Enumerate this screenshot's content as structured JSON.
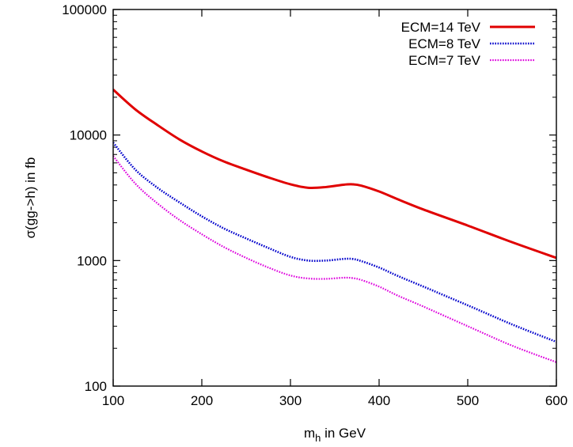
{
  "chart_data": {
    "type": "line",
    "xlabel": "m",
    "xlabel_sub": "h",
    "xlabel_suffix": " in GeV",
    "ylabel": "σ(gg->h) in fb",
    "xlim": [
      100,
      600
    ],
    "ylim": [
      100,
      100000
    ],
    "yscale": "log",
    "grid": false,
    "legend_position": "top-right",
    "x_ticks": [
      100,
      200,
      300,
      400,
      500,
      600
    ],
    "x_tick_labels": [
      "100",
      "200",
      "300",
      "400",
      "500",
      "600"
    ],
    "y_ticks": [
      100,
      1000,
      10000,
      100000
    ],
    "y_tick_labels": [
      "100",
      "1000",
      "10000",
      "100000"
    ],
    "series": [
      {
        "name": "ECM=14 TeV",
        "color": "#e00000",
        "dash": "solid",
        "x": [
          100,
          125,
          150,
          175,
          200,
          225,
          250,
          275,
          300,
          320,
          340,
          360,
          370,
          380,
          400,
          420,
          450,
          500,
          550,
          600
        ],
        "y": [
          23000,
          16000,
          12000,
          9200,
          7400,
          6150,
          5300,
          4600,
          4050,
          3800,
          3850,
          4020,
          4050,
          3950,
          3550,
          3100,
          2550,
          1900,
          1400,
          1050
        ]
      },
      {
        "name": "ECM=8 TeV",
        "color": "#0000cc",
        "dash": "dotted",
        "x": [
          100,
          125,
          150,
          175,
          200,
          225,
          250,
          275,
          300,
          320,
          340,
          360,
          370,
          380,
          400,
          420,
          450,
          500,
          550,
          600
        ],
        "y": [
          8700,
          5300,
          3800,
          2900,
          2250,
          1800,
          1500,
          1260,
          1070,
          1000,
          1000,
          1030,
          1030,
          990,
          880,
          760,
          620,
          440,
          310,
          225
        ]
      },
      {
        "name": "ECM=7 TeV",
        "color": "#dd00dd",
        "dash": "dotted",
        "x": [
          100,
          125,
          150,
          175,
          200,
          225,
          250,
          275,
          300,
          320,
          340,
          360,
          370,
          380,
          400,
          420,
          450,
          500,
          550,
          600
        ],
        "y": [
          6800,
          4100,
          2850,
          2100,
          1620,
          1280,
          1050,
          880,
          760,
          720,
          715,
          730,
          725,
          700,
          620,
          530,
          430,
          300,
          210,
          155
        ]
      }
    ]
  }
}
